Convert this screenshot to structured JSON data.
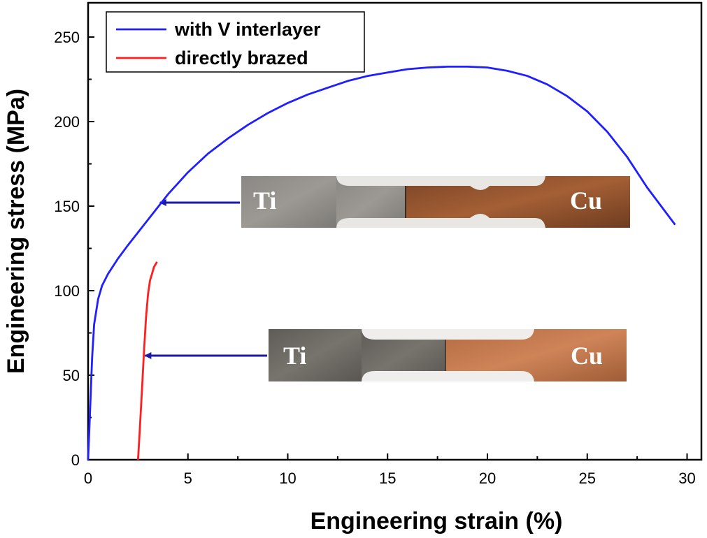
{
  "chart_data": {
    "type": "line",
    "xlabel": "Engineering strain (%)",
    "ylabel": "Engineering stress (MPa)",
    "xlim": [
      0,
      30
    ],
    "ylim": [
      0,
      270
    ],
    "xticks": [
      0,
      5,
      10,
      15,
      20,
      25,
      30
    ],
    "yticks": [
      0,
      50,
      100,
      150,
      200,
      250
    ],
    "grid": false,
    "legend_position": "top-left",
    "series": [
      {
        "name": "with V interlayer",
        "color": "#1f1fff",
        "x": [
          0,
          0.1,
          0.2,
          0.3,
          0.5,
          0.7,
          1.0,
          1.5,
          2.0,
          3.0,
          4.0,
          5.0,
          6.0,
          7.0,
          8.0,
          9.0,
          10.0,
          11.0,
          12.0,
          13.0,
          14.0,
          15.0,
          16.0,
          17.0,
          18.0,
          19.0,
          20.0,
          21.0,
          22.0,
          23.0,
          24.0,
          25.0,
          26.0,
          27.0,
          28.0,
          28.7,
          29.4
        ],
        "y": [
          0,
          30,
          60,
          80,
          95,
          103,
          110,
          119,
          127,
          142,
          157,
          170,
          181,
          190,
          198,
          205,
          211,
          216,
          220,
          224,
          227,
          229,
          231,
          232,
          232.5,
          232.5,
          232,
          230,
          227,
          222,
          215,
          206,
          194,
          179,
          161,
          150,
          139
        ]
      },
      {
        "name": "directly brazed",
        "color": "#ff1f1f",
        "x": [
          2.5,
          2.6,
          2.7,
          2.8,
          2.9,
          3.0,
          3.1,
          3.2,
          3.3,
          3.45
        ],
        "y": [
          0,
          20,
          42,
          64,
          84,
          98,
          106,
          110,
          114,
          117
        ]
      }
    ],
    "annotations": [
      {
        "left_label": "Ti",
        "right_label": "Cu",
        "arrow_target": {
          "x": 3.6,
          "y": 151
        }
      },
      {
        "left_label": "Ti",
        "right_label": "Cu",
        "arrow_target": {
          "x": 2.85,
          "y": 61
        }
      }
    ]
  }
}
